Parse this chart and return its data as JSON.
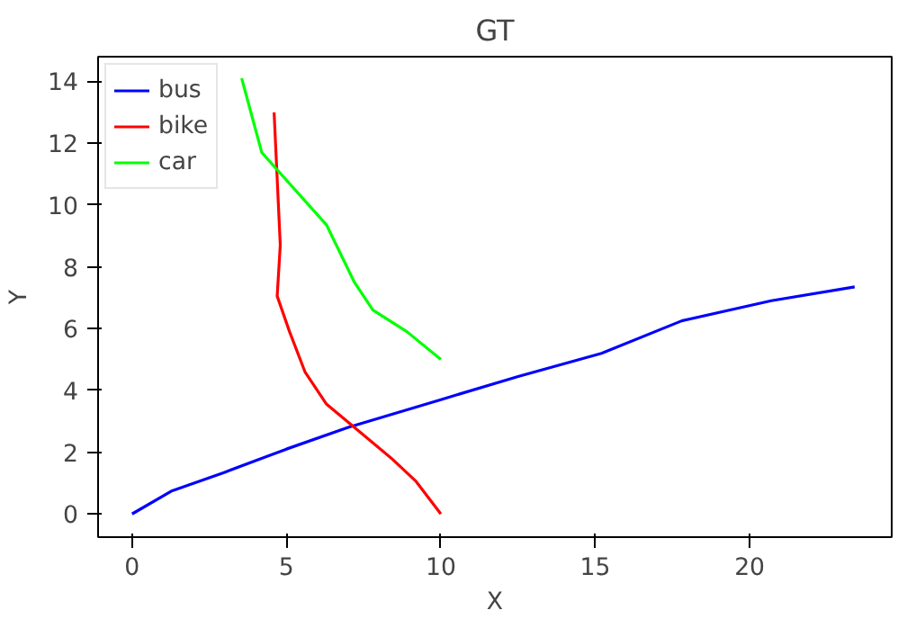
{
  "chart_data": {
    "type": "line",
    "title": "GT",
    "xlabel": "X",
    "ylabel": "Y",
    "xlim": [
      -1.1,
      24.6
    ],
    "ylim": [
      -0.75,
      14.8
    ],
    "xticks": [
      0,
      5,
      10,
      15,
      20
    ],
    "yticks": [
      0,
      2,
      4,
      6,
      8,
      10,
      12,
      14
    ],
    "grid": false,
    "legend": "top left",
    "line_style": "solid",
    "series": [
      {
        "name": "bus",
        "color": "#0000ff",
        "x": [
          0,
          1.3,
          3,
          5,
          7,
          10,
          12.5,
          15.2,
          17.8,
          20.7,
          23.4
        ],
        "values": [
          0,
          0.75,
          1.35,
          2.1,
          2.8,
          3.7,
          4.45,
          5.2,
          6.25,
          6.9,
          7.35
        ]
      },
      {
        "name": "bike",
        "color": "#ff0000",
        "x": [
          10,
          9.2,
          8.4,
          7.2,
          6.3,
          5.6,
          5.1,
          4.7,
          4.8,
          4.6
        ],
        "values": [
          0,
          1.05,
          1.8,
          2.8,
          3.55,
          4.6,
          5.9,
          7.05,
          8.7,
          13
        ]
      },
      {
        "name": "car",
        "color": "#00ff00",
        "x": [
          10,
          8.9,
          7.8,
          7.2,
          6.3,
          4.2,
          3.55
        ],
        "values": [
          5.0,
          5.9,
          6.6,
          7.5,
          9.35,
          11.7,
          14.1
        ]
      }
    ]
  }
}
